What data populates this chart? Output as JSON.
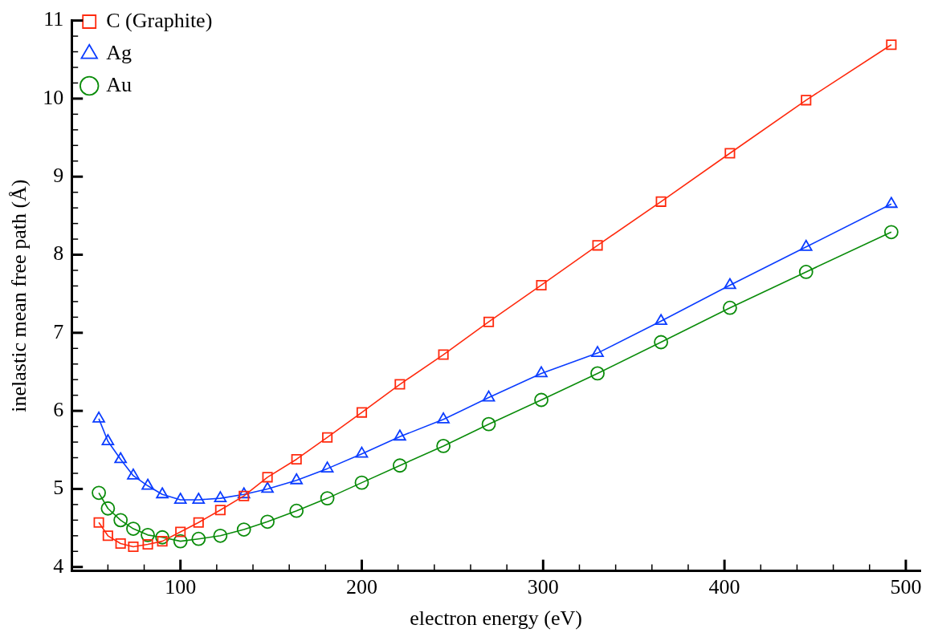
{
  "chart_data": {
    "type": "line",
    "xlabel": "electron energy (eV)",
    "ylabel": "inelastic mean free path (Å)",
    "x": [
      55,
      60,
      67,
      74,
      82,
      90,
      100,
      110,
      122,
      135,
      148,
      164,
      181,
      200,
      221,
      245,
      270,
      299,
      330,
      365,
      403,
      445,
      492
    ],
    "series": [
      {
        "name": "C (Graphite)",
        "color": "#ff2a0e",
        "marker": "square",
        "values": [
          4.57,
          4.4,
          4.3,
          4.26,
          4.29,
          4.33,
          4.45,
          4.57,
          4.73,
          4.91,
          5.15,
          5.38,
          5.66,
          5.98,
          6.34,
          6.72,
          7.14,
          7.61,
          8.12,
          8.68,
          9.3,
          9.98,
          10.69
        ]
      },
      {
        "name": "Ag",
        "color": "#0a3cff",
        "marker": "triangle",
        "values": [
          5.9,
          5.61,
          5.38,
          5.17,
          5.04,
          4.93,
          4.86,
          4.86,
          4.88,
          4.93,
          5.0,
          5.11,
          5.26,
          5.45,
          5.67,
          5.89,
          6.17,
          6.48,
          6.74,
          7.15,
          7.61,
          8.1,
          8.65
        ]
      },
      {
        "name": "Au",
        "color": "#0a8c0a",
        "marker": "circle",
        "values": [
          4.95,
          4.75,
          4.6,
          4.49,
          4.41,
          4.38,
          4.33,
          4.36,
          4.4,
          4.48,
          4.58,
          4.72,
          4.88,
          5.08,
          5.3,
          5.55,
          5.83,
          6.14,
          6.48,
          6.88,
          7.32,
          7.78,
          8.29
        ]
      }
    ],
    "xlim": [
      40,
      508
    ],
    "xticks": [
      {
        "value": 60,
        "label": null
      },
      {
        "value": 80,
        "label": null
      },
      100,
      {
        "value": 120,
        "label": null
      },
      {
        "value": 140,
        "label": null
      },
      {
        "value": 160,
        "label": null
      },
      {
        "value": 180,
        "label": null
      },
      200,
      {
        "value": 220,
        "label": null
      },
      {
        "value": 240,
        "label": null
      },
      {
        "value": 260,
        "label": null
      },
      {
        "value": 280,
        "label": null
      },
      300,
      {
        "value": 320,
        "label": null
      },
      {
        "value": 340,
        "label": null
      },
      {
        "value": 360,
        "label": null
      },
      {
        "value": 380,
        "label": null
      },
      400,
      {
        "value": 420,
        "label": null
      },
      {
        "value": 440,
        "label": null
      },
      {
        "value": 460,
        "label": null
      },
      {
        "value": 480,
        "label": null
      },
      500
    ],
    "ylim": [
      3.95,
      11
    ],
    "yticks": [
      4,
      {
        "value": 4.2,
        "label": null
      },
      {
        "value": 4.4,
        "label": null
      },
      {
        "value": 4.6,
        "label": null
      },
      {
        "value": 4.8,
        "label": null
      },
      5,
      {
        "value": 5.2,
        "label": null
      },
      {
        "value": 5.4,
        "label": null
      },
      {
        "value": 5.6,
        "label": null
      },
      {
        "value": 5.8,
        "label": null
      },
      6,
      {
        "value": 6.2,
        "label": null
      },
      {
        "value": 6.4,
        "label": null
      },
      {
        "value": 6.6,
        "label": null
      },
      {
        "value": 6.8,
        "label": null
      },
      7,
      {
        "value": 7.2,
        "label": null
      },
      {
        "value": 7.4,
        "label": null
      },
      {
        "value": 7.6,
        "label": null
      },
      {
        "value": 7.8,
        "label": null
      },
      8,
      {
        "value": 8.2,
        "label": null
      },
      {
        "value": 8.4,
        "label": null
      },
      {
        "value": 8.6,
        "label": null
      },
      {
        "value": 8.8,
        "label": null
      },
      9,
      {
        "value": 9.2,
        "label": null
      },
      {
        "value": 9.4,
        "label": null
      },
      {
        "value": 9.6,
        "label": null
      },
      {
        "value": 9.8,
        "label": null
      },
      10,
      {
        "value": 10.2,
        "label": null
      },
      {
        "value": 10.4,
        "label": null
      },
      {
        "value": 10.6,
        "label": null
      },
      {
        "value": 10.8,
        "label": null
      },
      11
    ],
    "grid": false,
    "legend": "top left",
    "line_style": "solid"
  }
}
